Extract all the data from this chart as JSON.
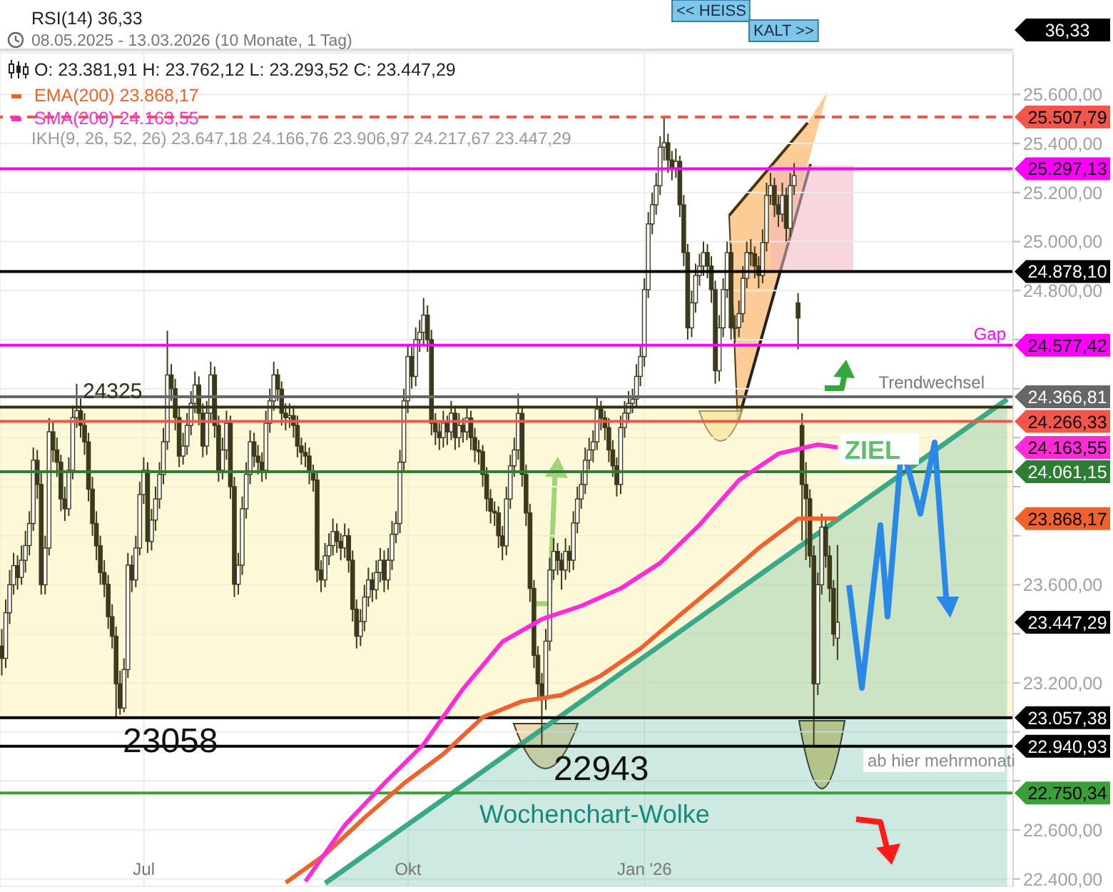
{
  "chart_data": {
    "type": "candlestick",
    "title": "O: 23.381,91  H: 23.762,12  L: 23.293,52  C: 23.447,29",
    "color": "#3d3a1c",
    "categories": [
      null,
      null,
      null,
      null,
      null,
      null,
      null,
      null,
      null,
      null,
      null,
      null,
      null,
      null,
      null,
      null,
      null,
      null,
      null,
      null,
      null,
      null,
      null,
      null,
      null,
      null,
      null,
      null,
      null,
      null,
      null,
      null,
      null,
      null,
      null,
      null,
      "Jul",
      null,
      null,
      null,
      null,
      null,
      null,
      null,
      null,
      null,
      null,
      null,
      null,
      null,
      null,
      null,
      null,
      null,
      null,
      null,
      null,
      null,
      null,
      null,
      null,
      null,
      null,
      null,
      null,
      null,
      null,
      null,
      null,
      null,
      null,
      null,
      null,
      null,
      null,
      null,
      null,
      null,
      null,
      null,
      null,
      null,
      null,
      null,
      null,
      null,
      null,
      null,
      null,
      null,
      null,
      null,
      null,
      null,
      null,
      null,
      null,
      null,
      null,
      null,
      null,
      null,
      null,
      "Okt",
      null,
      null,
      null,
      null,
      null,
      null,
      null,
      null,
      null,
      null,
      null,
      null,
      null,
      null,
      null,
      null,
      null,
      null,
      null,
      null,
      null,
      null,
      null,
      null,
      null,
      null,
      null,
      null,
      null,
      null,
      null,
      null,
      null,
      null,
      null,
      null,
      null,
      null,
      null,
      null,
      null,
      null,
      null,
      null,
      null,
      null,
      null,
      null,
      null,
      null,
      null,
      null,
      null,
      null,
      null,
      null,
      null,
      null,
      null,
      "Jan '26",
      null,
      null,
      null,
      null,
      null,
      null,
      null,
      null,
      null,
      null,
      null,
      null,
      null,
      null,
      null,
      null,
      null,
      null,
      null,
      null,
      null,
      null,
      null,
      null,
      null,
      null,
      null,
      null,
      null,
      null,
      null,
      null,
      null,
      null,
      null,
      null,
      null,
      null,
      null,
      null,
      null,
      null,
      null,
      null,
      null,
      null,
      null,
      null,
      null,
      null,
      null,
      null,
      null,
      null,
      null,
      null,
      null,
      null,
      null,
      null,
      null,
      null,
      null,
      null,
      null,
      null,
      null,
      null,
      null,
      null,
      null,
      null,
      null,
      null,
      null,
      null,
      null,
      null,
      null,
      null,
      null,
      null,
      null,
      null,
      null,
      null,
      null,
      null,
      null,
      null,
      null,
      null,
      null
    ],
    "ohlc": [
      [
        23350,
        23420,
        23230,
        23300
      ],
      [
        23300,
        23540,
        23260,
        23486
      ],
      [
        23486,
        23660,
        23440,
        23600
      ],
      [
        23600,
        23730,
        23560,
        23678
      ],
      [
        23678,
        23720,
        23580,
        23630
      ],
      [
        23630,
        23760,
        23600,
        23700
      ],
      [
        23700,
        23820,
        23650,
        23760
      ],
      [
        23760,
        23900,
        23720,
        23850
      ],
      [
        23850,
        24160,
        23820,
        24108
      ],
      [
        24108,
        24150,
        23950,
        24009
      ],
      [
        24009,
        24060,
        23560,
        23600
      ],
      [
        23600,
        23800,
        23560,
        23750
      ],
      [
        23750,
        24280,
        23720,
        24224
      ],
      [
        24224,
        24270,
        24100,
        24150
      ],
      [
        24150,
        24200,
        24040,
        24100
      ],
      [
        24100,
        24130,
        23900,
        23950
      ],
      [
        23950,
        24000,
        23860,
        23910
      ],
      [
        23910,
        24120,
        23880,
        24067
      ],
      [
        24067,
        24330,
        24030,
        24282
      ],
      [
        24282,
        24420,
        24240,
        24310
      ],
      [
        24310,
        24360,
        24200,
        24250
      ],
      [
        24250,
        24300,
        24130,
        24183
      ],
      [
        24183,
        24220,
        23940,
        23990
      ],
      [
        23990,
        24040,
        23800,
        23850
      ],
      [
        23850,
        23900,
        23700,
        23759
      ],
      [
        23759,
        23800,
        23600,
        23650
      ],
      [
        23650,
        23700,
        23550,
        23602
      ],
      [
        23602,
        23640,
        23420,
        23470
      ],
      [
        23470,
        23520,
        23340,
        23390
      ],
      [
        23390,
        23430,
        23058,
        23196
      ],
      [
        23196,
        23250,
        23070,
        23097
      ],
      [
        23097,
        23300,
        23080,
        23254
      ],
      [
        23254,
        23730,
        23220,
        23680
      ],
      [
        23680,
        23720,
        23570,
        23620
      ],
      [
        23620,
        23800,
        23590,
        23750
      ],
      [
        23750,
        24020,
        23720,
        23968
      ],
      [
        23968,
        24120,
        23930,
        24067
      ],
      [
        24067,
        24100,
        23730,
        23777
      ],
      [
        23777,
        23910,
        23740,
        23864
      ],
      [
        23864,
        24000,
        23820,
        23950
      ],
      [
        23950,
        24100,
        23910,
        24050
      ],
      [
        24050,
        24240,
        24010,
        24183
      ],
      [
        24183,
        24636,
        24150,
        24456
      ],
      [
        24456,
        24500,
        24350,
        24400
      ],
      [
        24400,
        24440,
        24230,
        24282
      ],
      [
        24282,
        24320,
        24080,
        24125
      ],
      [
        24125,
        24220,
        24090,
        24166
      ],
      [
        24166,
        24300,
        24130,
        24250
      ],
      [
        24250,
        24390,
        24210,
        24340
      ],
      [
        24340,
        24470,
        24300,
        24415
      ],
      [
        24415,
        24450,
        24250,
        24300
      ],
      [
        24300,
        24340,
        24120,
        24166
      ],
      [
        24166,
        24350,
        24130,
        24300
      ],
      [
        24300,
        24510,
        24260,
        24456
      ],
      [
        24456,
        24490,
        24200,
        24250
      ],
      [
        24250,
        24290,
        24020,
        24067
      ],
      [
        24067,
        24200,
        24030,
        24150
      ],
      [
        24150,
        24310,
        24110,
        24259
      ],
      [
        24259,
        24290,
        23950,
        24000
      ],
      [
        24000,
        24040,
        23550,
        23602
      ],
      [
        23602,
        23730,
        23560,
        23680
      ],
      [
        23680,
        23960,
        23640,
        23910
      ],
      [
        23910,
        24100,
        23870,
        24050
      ],
      [
        24050,
        24230,
        24010,
        24183
      ],
      [
        24183,
        24220,
        24080,
        24125
      ],
      [
        24125,
        24170,
        24050,
        24100
      ],
      [
        24100,
        24140,
        24020,
        24067
      ],
      [
        24067,
        24310,
        24030,
        24259
      ],
      [
        24259,
        24400,
        24220,
        24350
      ],
      [
        24350,
        24510,
        24310,
        24456
      ],
      [
        24456,
        24480,
        24350,
        24398
      ],
      [
        24398,
        24430,
        24250,
        24300
      ],
      [
        24300,
        24340,
        24230,
        24282
      ],
      [
        24282,
        24340,
        24240,
        24290
      ],
      [
        24290,
        24330,
        24200,
        24250
      ],
      [
        24250,
        24290,
        24120,
        24166
      ],
      [
        24166,
        24200,
        24090,
        24140
      ],
      [
        24140,
        24180,
        24080,
        24125
      ],
      [
        24125,
        24160,
        24010,
        24060
      ],
      [
        24060,
        24090,
        23980,
        24027
      ],
      [
        24027,
        24060,
        23610,
        23660
      ],
      [
        23660,
        23700,
        23570,
        23620
      ],
      [
        23620,
        23770,
        23590,
        23718
      ],
      [
        23718,
        23810,
        23680,
        23760
      ],
      [
        23760,
        23870,
        23720,
        23817
      ],
      [
        23817,
        23850,
        23730,
        23777
      ],
      [
        23777,
        23810,
        23700,
        23750
      ],
      [
        23750,
        23850,
        23710,
        23800
      ],
      [
        23800,
        23830,
        23650,
        23700
      ],
      [
        23700,
        23740,
        23450,
        23500
      ],
      [
        23500,
        23540,
        23340,
        23390
      ],
      [
        23390,
        23500,
        23350,
        23450
      ],
      [
        23450,
        23600,
        23410,
        23550
      ],
      [
        23550,
        23670,
        23510,
        23620
      ],
      [
        23620,
        23650,
        23530,
        23580
      ],
      [
        23580,
        23700,
        23540,
        23650
      ],
      [
        23650,
        23750,
        23610,
        23700
      ],
      [
        23700,
        23740,
        23570,
        23620
      ],
      [
        23620,
        23750,
        23580,
        23700
      ],
      [
        23700,
        23860,
        23660,
        23806
      ],
      [
        23806,
        23900,
        23770,
        23850
      ],
      [
        23850,
        24150,
        23810,
        24100
      ],
      [
        24100,
        24400,
        24060,
        24350
      ],
      [
        24350,
        24580,
        24300,
        24531
      ],
      [
        24531,
        24570,
        24400,
        24450
      ],
      [
        24450,
        24650,
        24410,
        24600
      ],
      [
        24600,
        24680,
        24550,
        24630
      ],
      [
        24630,
        24770,
        24580,
        24700
      ],
      [
        24700,
        24740,
        24550,
        24600
      ],
      [
        24600,
        24640,
        24210,
        24259
      ],
      [
        24259,
        24300,
        24170,
        24224
      ],
      [
        24224,
        24260,
        24150,
        24200
      ],
      [
        24200,
        24310,
        24160,
        24260
      ],
      [
        24260,
        24290,
        24170,
        24224
      ],
      [
        24224,
        24350,
        24190,
        24300
      ],
      [
        24300,
        24330,
        24150,
        24200
      ],
      [
        24200,
        24300,
        24160,
        24250
      ],
      [
        24250,
        24280,
        24180,
        24224
      ],
      [
        24224,
        24330,
        24190,
        24280
      ],
      [
        24280,
        24310,
        24150,
        24200
      ],
      [
        24200,
        24240,
        24100,
        24150
      ],
      [
        24150,
        24190,
        24090,
        24143
      ],
      [
        24143,
        24170,
        24000,
        24050
      ],
      [
        24050,
        24080,
        23900,
        23951
      ],
      [
        23951,
        23990,
        23850,
        23900
      ],
      [
        23900,
        23940,
        23840,
        23893
      ],
      [
        23893,
        23920,
        23750,
        23800
      ],
      [
        23800,
        23840,
        23700,
        23759
      ],
      [
        23759,
        24000,
        23720,
        23950
      ],
      [
        23950,
        24130,
        23910,
        24085
      ],
      [
        24085,
        24200,
        24040,
        24150
      ],
      [
        24150,
        24380,
        24110,
        24299
      ],
      [
        24299,
        24330,
        24000,
        24050
      ],
      [
        24050,
        24090,
        23840,
        23893
      ],
      [
        23893,
        23930,
        23530,
        23585
      ],
      [
        23585,
        23620,
        23260,
        23312
      ],
      [
        23312,
        23350,
        23140,
        23196
      ],
      [
        23196,
        23240,
        22943,
        23138
      ],
      [
        23138,
        23420,
        23090,
        23370
      ],
      [
        23370,
        23710,
        23330,
        23660
      ],
      [
        23660,
        23790,
        23620,
        23736
      ],
      [
        23736,
        23770,
        23640,
        23700
      ],
      [
        23700,
        23730,
        23580,
        23660
      ],
      [
        23660,
        23790,
        23620,
        23736
      ],
      [
        23736,
        23760,
        23650,
        23700
      ],
      [
        23700,
        23900,
        23660,
        23852
      ],
      [
        23852,
        24000,
        23810,
        23950
      ],
      [
        23950,
        24060,
        23910,
        24009
      ],
      [
        24009,
        24160,
        23970,
        24108
      ],
      [
        24108,
        24200,
        24070,
        24150
      ],
      [
        24150,
        24230,
        24100,
        24183
      ],
      [
        24183,
        24370,
        24150,
        24317
      ],
      [
        24317,
        24350,
        24230,
        24280
      ],
      [
        24280,
        24310,
        24190,
        24241
      ],
      [
        24241,
        24280,
        24100,
        24150
      ],
      [
        24150,
        24190,
        24040,
        24085
      ],
      [
        24085,
        24120,
        23960,
        24009
      ],
      [
        24009,
        24290,
        23970,
        24241
      ],
      [
        24241,
        24350,
        24200,
        24300
      ],
      [
        24300,
        24390,
        24260,
        24340
      ],
      [
        24340,
        24400,
        24300,
        24357
      ],
      [
        24357,
        24500,
        24320,
        24450
      ],
      [
        24450,
        24580,
        24410,
        24531
      ],
      [
        24531,
        24850,
        24490,
        24804
      ],
      [
        24804,
        25120,
        24770,
        25072
      ],
      [
        25072,
        25200,
        25030,
        25150
      ],
      [
        25150,
        25280,
        25110,
        25228
      ],
      [
        25228,
        25430,
        25190,
        25385
      ],
      [
        25385,
        25508,
        25330,
        25403
      ],
      [
        25403,
        25440,
        25280,
        25333
      ],
      [
        25333,
        25370,
        25250,
        25300
      ],
      [
        25300,
        25380,
        25260,
        25327
      ],
      [
        25327,
        25350,
        25100,
        25150
      ],
      [
        25150,
        25190,
        24900,
        24955
      ],
      [
        24955,
        24990,
        24600,
        24648
      ],
      [
        24648,
        24800,
        24610,
        24750
      ],
      [
        24750,
        24910,
        24710,
        24862
      ],
      [
        24862,
        24950,
        24820,
        24900
      ],
      [
        24900,
        25000,
        24860,
        24955
      ],
      [
        24955,
        24990,
        24850,
        24900
      ],
      [
        24900,
        24940,
        24750,
        24804
      ],
      [
        24804,
        24840,
        24420,
        24473
      ],
      [
        24473,
        24700,
        24430,
        24648
      ],
      [
        24648,
        24850,
        24610,
        24804
      ],
      [
        24804,
        25000,
        24770,
        24955
      ],
      [
        24955,
        24990,
        24600,
        24648
      ],
      [
        24648,
        24700,
        24590,
        24650
      ],
      [
        24650,
        24760,
        24610,
        24706
      ],
      [
        24706,
        24900,
        24670,
        24850
      ],
      [
        24850,
        25000,
        24810,
        24955
      ],
      [
        24955,
        25010,
        24900,
        24950
      ],
      [
        24950,
        24980,
        24850,
        24900
      ],
      [
        24900,
        24940,
        24810,
        24862
      ],
      [
        24862,
        25050,
        24830,
        24996
      ],
      [
        24996,
        25240,
        24960,
        25188
      ],
      [
        25188,
        25280,
        25150,
        25228
      ],
      [
        25228,
        25260,
        25100,
        25150
      ],
      [
        25150,
        25190,
        25060,
        25112
      ],
      [
        25112,
        25240,
        25080,
        25188
      ],
      [
        25188,
        25220,
        25000,
        25054
      ],
      [
        25054,
        25280,
        25020,
        25228
      ],
      [
        25228,
        25320,
        25190,
        25269
      ],
      [
        24750,
        24790,
        24560,
        24688
      ],
      [
        24250,
        24300,
        23780,
        24009
      ],
      [
        24009,
        24100,
        23700,
        23951
      ],
      [
        23951,
        23990,
        23670,
        23718
      ],
      [
        23718,
        23760,
        22941,
        23196
      ],
      [
        23196,
        23650,
        23150,
        23600
      ],
      [
        23600,
        23890,
        23560,
        23835
      ],
      [
        23835,
        23870,
        23670,
        23718
      ],
      [
        23718,
        23760,
        23530,
        23585
      ],
      [
        23585,
        23620,
        23350,
        23399
      ],
      [
        23381.91,
        23762.12,
        23293.52,
        23447.29
      ],
      null,
      null,
      null,
      null,
      null,
      null,
      null,
      null,
      null,
      null,
      null,
      null,
      null,
      null,
      null,
      null,
      null,
      null,
      null,
      null,
      null,
      null,
      null,
      null,
      null,
      null,
      null,
      null,
      null,
      null,
      null,
      null,
      null,
      null,
      null,
      null,
      null,
      null,
      null,
      null,
      null,
      null,
      null,
      null
    ],
    "series": [
      {
        "type": "line",
        "name": "EMA(200)  23.868,17",
        "color": "#f0622d",
        "values": [
          null,
          null,
          null,
          null,
          null,
          null,
          null,
          null,
          null,
          null,
          null,
          null,
          null,
          null,
          null,
          null,
          null,
          null,
          null,
          null,
          null,
          null,
          null,
          null,
          null,
          null,
          null,
          null,
          null,
          null,
          null,
          null,
          null,
          null,
          null,
          null,
          null,
          null,
          null,
          null,
          null,
          null,
          null,
          null,
          null,
          null,
          null,
          null,
          null,
          null,
          null,
          null,
          null,
          null,
          null,
          null,
          null,
          null,
          null,
          null,
          null,
          null,
          null,
          null,
          null,
          null,
          null,
          null,
          null,
          null,
          null,
          null,
          22385,
          null,
          null,
          null,
          null,
          null,
          null,
          null,
          null,
          null,
          22500,
          null,
          null,
          null,
          null,
          null,
          null,
          null,
          null,
          null,
          22650,
          null,
          null,
          null,
          null,
          null,
          null,
          null,
          null,
          null,
          22790,
          null,
          null,
          null,
          null,
          null,
          null,
          null,
          null,
          null,
          22910,
          null,
          null,
          null,
          null,
          null,
          null,
          null,
          null,
          null,
          23060,
          null,
          null,
          null,
          null,
          null,
          null,
          null,
          null,
          null,
          23125,
          null,
          null,
          null,
          null,
          null,
          null,
          null,
          null,
          null,
          23150,
          null,
          null,
          null,
          null,
          null,
          null,
          null,
          null,
          null,
          23230,
          null,
          null,
          null,
          null,
          null,
          null,
          null,
          null,
          null,
          23340,
          null,
          null,
          null,
          null,
          null,
          null,
          null,
          null,
          null,
          23477,
          null,
          null,
          null,
          null,
          null,
          null,
          null,
          null,
          null,
          23610,
          null,
          null,
          null,
          null,
          null,
          null,
          null,
          null,
          null,
          23750,
          null,
          null,
          null,
          null,
          null,
          null,
          null,
          null,
          null,
          23870,
          null,
          null,
          null,
          null,
          null,
          null,
          null,
          null,
          null,
          23870,
          null,
          null,
          null,
          null,
          null,
          null,
          null,
          null,
          null,
          null,
          null,
          null,
          null,
          null,
          null,
          null,
          null,
          null,
          null,
          null,
          null,
          null,
          null,
          null,
          null,
          null,
          null,
          null,
          null,
          null,
          null,
          null,
          null,
          null,
          null,
          null,
          null,
          null,
          null,
          null,
          null,
          null,
          null,
          null
        ]
      },
      {
        "type": "line",
        "name": "SMA(200)  24.163,55",
        "color": "#ff2bd6",
        "values": [
          null,
          null,
          null,
          null,
          null,
          null,
          null,
          null,
          null,
          null,
          null,
          null,
          null,
          null,
          null,
          null,
          null,
          null,
          null,
          null,
          null,
          null,
          null,
          null,
          null,
          null,
          null,
          null,
          null,
          null,
          null,
          null,
          null,
          null,
          null,
          null,
          null,
          null,
          null,
          null,
          null,
          null,
          null,
          null,
          null,
          null,
          null,
          null,
          null,
          null,
          null,
          null,
          null,
          null,
          null,
          null,
          null,
          null,
          null,
          null,
          null,
          null,
          null,
          null,
          null,
          null,
          null,
          null,
          null,
          null,
          null,
          null,
          null,
          null,
          null,
          null,
          null,
          22390,
          null,
          null,
          null,
          null,
          null,
          null,
          null,
          null,
          null,
          22620,
          null,
          null,
          null,
          null,
          null,
          null,
          null,
          null,
          null,
          22790,
          null,
          null,
          null,
          null,
          null,
          null,
          null,
          null,
          null,
          22950,
          null,
          null,
          null,
          null,
          null,
          null,
          null,
          null,
          null,
          23176,
          null,
          null,
          null,
          null,
          null,
          null,
          null,
          null,
          null,
          23368,
          null,
          null,
          null,
          null,
          null,
          null,
          null,
          null,
          null,
          23460,
          null,
          null,
          null,
          null,
          null,
          null,
          null,
          null,
          null,
          23514,
          null,
          null,
          null,
          null,
          null,
          null,
          null,
          null,
          null,
          23585,
          null,
          null,
          null,
          null,
          null,
          null,
          null,
          null,
          null,
          23689,
          null,
          null,
          null,
          null,
          null,
          null,
          null,
          null,
          null,
          23845,
          null,
          null,
          null,
          null,
          null,
          null,
          null,
          null,
          null,
          24027,
          null,
          null,
          null,
          null,
          null,
          null,
          null,
          null,
          null,
          24135,
          null,
          null,
          null,
          null,
          null,
          null,
          null,
          null,
          null,
          24172,
          null,
          null,
          null,
          null,
          24160,
          null,
          null,
          null,
          null,
          null,
          null,
          null,
          null,
          null,
          null,
          null,
          null,
          null,
          null,
          null,
          null,
          null,
          null,
          null,
          null,
          null,
          null,
          null,
          null,
          null,
          null,
          null,
          null,
          null,
          null,
          null,
          null,
          null,
          null,
          null,
          null,
          null,
          null,
          null,
          null,
          null,
          null,
          null,
          null
        ]
      },
      {
        "type": "area",
        "color": "#3aa987",
        "values": [
          null,
          null,
          null,
          null,
          null,
          null,
          null,
          null,
          null,
          null,
          null,
          null,
          null,
          null,
          null,
          null,
          null,
          null,
          null,
          null,
          null,
          null,
          null,
          null,
          null,
          null,
          null,
          null,
          null,
          null,
          null,
          null,
          null,
          null,
          null,
          null,
          null,
          null,
          null,
          null,
          null,
          null,
          null,
          null,
          null,
          null,
          null,
          null,
          null,
          null,
          null,
          null,
          null,
          null,
          null,
          null,
          null,
          null,
          null,
          null,
          null,
          null,
          null,
          null,
          null,
          null,
          null,
          null,
          null,
          null,
          null,
          null,
          null,
          null,
          null,
          null,
          null,
          null,
          null,
          null,
          null,
          null,
          22383,
          null,
          null,
          null,
          null,
          null,
          null,
          null,
          null,
          null,
          null,
          null,
          null,
          null,
          null,
          null,
          null,
          null,
          null,
          null,
          null,
          null,
          null,
          null,
          null,
          null,
          null,
          null,
          null,
          null,
          null,
          null,
          null,
          null,
          null,
          null,
          null,
          null,
          null,
          null,
          null,
          null,
          null,
          null,
          null,
          null,
          null,
          null,
          null,
          null,
          null,
          null,
          null,
          null,
          null,
          null,
          null,
          null,
          null,
          null,
          null,
          null,
          null,
          null,
          null,
          null,
          null,
          null,
          null,
          null,
          null,
          null,
          null,
          null,
          null,
          null,
          null,
          null,
          null,
          null,
          null,
          null,
          null,
          null,
          null,
          null,
          null,
          null,
          null,
          null,
          null,
          null,
          null,
          null,
          null,
          null,
          null,
          null,
          null,
          null,
          null,
          null,
          null,
          null,
          null,
          null,
          null,
          null,
          null,
          null,
          null,
          null,
          null,
          null,
          null,
          null,
          null,
          null,
          null,
          null,
          null,
          null,
          null,
          null,
          null,
          null,
          null,
          null,
          null,
          null,
          null,
          null,
          null,
          null,
          null,
          null,
          null,
          null,
          null,
          null,
          null,
          null,
          null,
          null,
          null,
          null,
          null,
          null,
          null,
          null,
          null,
          null,
          null,
          null,
          null,
          null,
          null,
          null,
          null,
          null,
          null,
          null,
          null,
          null,
          null,
          null,
          null,
          null,
          null,
          null,
          null,
          null,
          null,
          24357,
          null
        ]
      }
    ],
    "ylim": [
      22370,
      25770
    ],
    "yticks": [
      {
        "value": 22400,
        "label": "22.400,00"
      },
      {
        "value": 22600,
        "label": "22.600,00"
      },
      {
        "value": 22800,
        "label": null
      },
      {
        "value": 23000,
        "label": null
      },
      {
        "value": 23200,
        "label": "23.200,00"
      },
      {
        "value": 23400,
        "label": null
      },
      {
        "value": 23600,
        "label": "23.600,00"
      },
      {
        "value": 23800,
        "label": null
      },
      {
        "value": 24000,
        "label": null
      },
      {
        "value": 24200,
        "label": null
      },
      {
        "value": 24400,
        "label": null
      },
      {
        "value": 24600,
        "label": null
      },
      {
        "value": 24800,
        "label": "24.800,00"
      },
      {
        "value": 25000,
        "label": "25.000,00"
      },
      {
        "value": 25200,
        "label": "25.200,00"
      },
      {
        "value": 25400,
        "label": "25.400,00"
      },
      {
        "value": 25600,
        "label": "25.600,00"
      }
    ],
    "bands": [
      {
        "axis": "y",
        "from": 23057.38,
        "to": 24325,
        "color": "#fbf3b2"
      }
    ],
    "ref_lines": [
      {
        "axis": "y",
        "value": 25507.79,
        "label": "25.507,79",
        "color": "#f0564a",
        "line_style": "dashed"
      },
      {
        "axis": "y",
        "value": 25297.13,
        "label": "25.297,13",
        "color": "#ff00ff"
      },
      {
        "axis": "y",
        "value": 24878.1,
        "label": "24.878,10",
        "color": "#000000"
      },
      {
        "axis": "y",
        "value": 24577.42,
        "label": "24.577,42",
        "color": "#ff00ff"
      },
      {
        "axis": "y",
        "value": 24366.81,
        "label": "24.366,81",
        "color": "#666666"
      },
      {
        "axis": "y",
        "value": 24325,
        "label": "24325",
        "color": "#333014"
      },
      {
        "axis": "y",
        "value": 24266.33,
        "label": "24.266,33",
        "color": "#f0564a"
      },
      {
        "axis": "y",
        "value": 24061.15,
        "label": "24.061,15",
        "color": "#2e7d32"
      },
      {
        "axis": "y",
        "value": 23057.38,
        "label": "23.057,38",
        "color": "#000000"
      },
      {
        "axis": "y",
        "value": 22940.93,
        "label": "22.940,93",
        "color": "#000000"
      },
      {
        "axis": "y",
        "value": 22750.34,
        "label": "22.750,34",
        "color": "#3a9e3a"
      }
    ],
    "annotations": [
      "RSI(14)  36,33",
      "36,33",
      "<< HEISS",
      "KALT >>",
      "08.05.2025 - 13.03.2026  (10 Monate, 1 Tag)",
      "IKH(9, 26, 52, 26)  23.647,18  24.166,76  23.906,97  24.217,67  23.447,29",
      {
        "text": "Gap",
        "y": 24577.42
      },
      {
        "text": "Trendwechsel",
        "y": 24366.81
      },
      {
        "text": "ZIEL",
        "y": 24061.15
      },
      {
        "text": "23058",
        "y": 23058
      },
      {
        "text": "22943",
        "y": 22943
      },
      {
        "text": "ab hier mehrmonati",
        "y": 22940.93
      },
      {
        "text": "Wochenchart-Wolke",
        "y": 22750.34
      },
      "24.163,55",
      "23.868,17",
      "23.447,29"
    ],
    "grid": true,
    "legend": "top left"
  }
}
